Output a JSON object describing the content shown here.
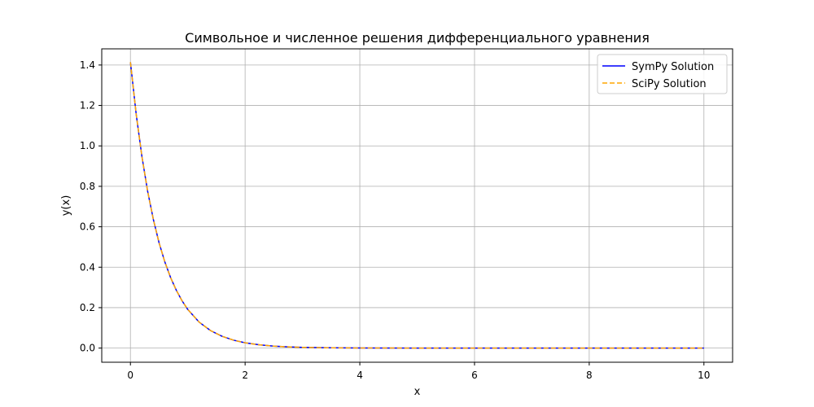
{
  "chart_data": {
    "type": "line",
    "title": "Символьное и численное решения дифференциального уравнения",
    "xlabel": "x",
    "ylabel": "y(x)",
    "xlim": [
      -0.5,
      10.5
    ],
    "ylim": [
      -0.07,
      1.48
    ],
    "xticks": [
      0,
      2,
      4,
      6,
      8,
      10
    ],
    "xtick_labels": [
      "0",
      "2",
      "4",
      "6",
      "8",
      "10"
    ],
    "yticks": [
      0.0,
      0.2,
      0.4,
      0.6,
      0.8,
      1.0,
      1.2,
      1.4
    ],
    "ytick_labels": [
      "0.0",
      "0.2",
      "0.4",
      "0.6",
      "0.8",
      "1.0",
      "1.2",
      "1.4"
    ],
    "grid": true,
    "legend_position": "top-right",
    "series": [
      {
        "name": "SymPy Solution",
        "color": "#0000ff",
        "dash": "solid",
        "x": [
          0,
          0.1,
          0.2,
          0.3,
          0.4,
          0.5,
          0.6,
          0.7,
          0.8,
          0.9,
          1.0,
          1.2,
          1.4,
          1.6,
          1.8,
          2.0,
          2.25,
          2.5,
          2.75,
          3.0,
          3.5,
          4.0,
          5.0,
          6.0,
          7.0,
          8.0,
          9.0,
          10.0
        ],
        "y": [
          1.414,
          1.158,
          0.948,
          0.776,
          0.636,
          0.52,
          0.426,
          0.349,
          0.286,
          0.234,
          0.191,
          0.128,
          0.086,
          0.058,
          0.039,
          0.026,
          0.016,
          0.0095,
          0.0058,
          0.0035,
          0.0013,
          0.0005,
          0.0001,
          0.0,
          0.0,
          0.0,
          0.0,
          0.0
        ]
      },
      {
        "name": "SciPy Solution",
        "color": "#ffa500",
        "dash": "dashed",
        "x": [
          0,
          0.1,
          0.2,
          0.3,
          0.4,
          0.5,
          0.6,
          0.7,
          0.8,
          0.9,
          1.0,
          1.2,
          1.4,
          1.6,
          1.8,
          2.0,
          2.25,
          2.5,
          2.75,
          3.0,
          3.5,
          4.0,
          5.0,
          6.0,
          7.0,
          8.0,
          9.0,
          10.0
        ],
        "y": [
          1.414,
          1.158,
          0.948,
          0.776,
          0.636,
          0.52,
          0.426,
          0.349,
          0.286,
          0.234,
          0.191,
          0.128,
          0.086,
          0.058,
          0.039,
          0.026,
          0.016,
          0.0095,
          0.0058,
          0.0035,
          0.0013,
          0.0005,
          0.0001,
          0.0,
          0.0,
          0.0,
          0.0,
          0.0
        ]
      }
    ]
  }
}
